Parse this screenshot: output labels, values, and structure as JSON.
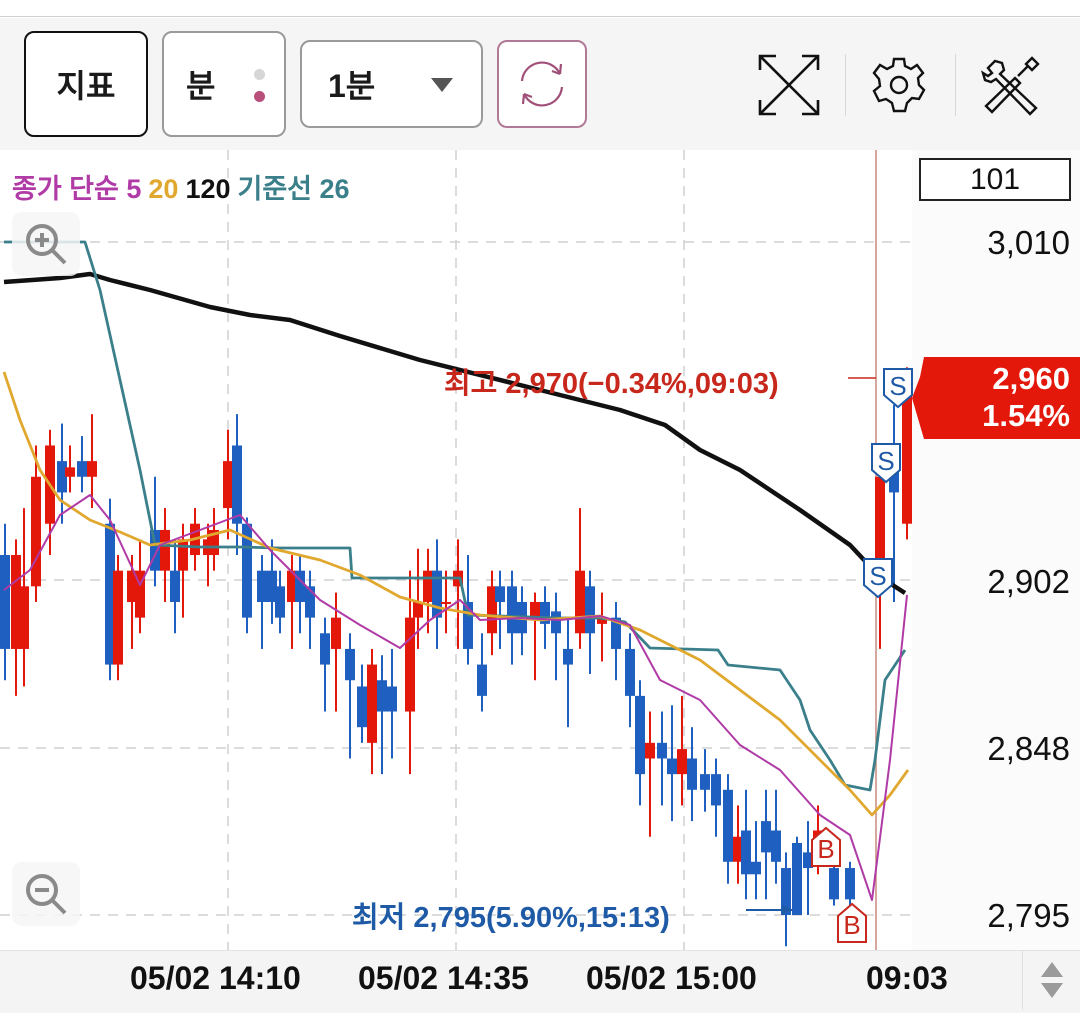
{
  "toolbar": {
    "indicator_label": "지표",
    "unit_label": "분",
    "unit_dots": [
      "#d6d6d6",
      "#b94f7b"
    ],
    "period_label": "1분",
    "refresh_icon": "refresh-icon",
    "icons": [
      "fullscreen-icon",
      "gear-icon",
      "tools-icon"
    ]
  },
  "legend": {
    "items": [
      {
        "text": "종가 단순 5",
        "color": "#b03aa6"
      },
      {
        "text": "20",
        "color": "#e0a82e"
      },
      {
        "text": "120",
        "color": "#111111"
      },
      {
        "text": "기준선 26",
        "color": "#3a7f8a"
      }
    ]
  },
  "count_box": "101",
  "price_tag": {
    "price": "2,960",
    "change": "1.54%",
    "color": "#e3170a"
  },
  "annotations": {
    "high": {
      "text": "최고 2,970(−0.34%,09:03)",
      "color": "#c8281c"
    },
    "low": {
      "text": "최저 2,795(5.90%,15:13)",
      "color": "#1f5aa6"
    }
  },
  "colors": {
    "up": "#e3170a",
    "down": "#1f5fbf",
    "ma5": "#b03aa6",
    "ma20": "#e0a82e",
    "ma120": "#111111",
    "base": "#3a7f8a",
    "grid": "#d0d0d0",
    "now_line": "#c98a7e"
  },
  "chart_data": {
    "type": "candlestick",
    "title": "",
    "interval": "1분",
    "y_ticks": [
      "3,010",
      "2,902",
      "2,848",
      "2,795"
    ],
    "ylim": [
      2780,
      3030
    ],
    "x_ticks": [
      "05/02 14:10",
      "05/02 14:35",
      "05/02 15:00",
      "09:03"
    ],
    "current_price": 2960,
    "current_change_pct": 1.54,
    "high": {
      "price": 2970,
      "pct": -0.34,
      "time": "09:03"
    },
    "low": {
      "price": 2795,
      "pct": 5.9,
      "time": "15:13"
    },
    "candle_count": 101,
    "series": [
      {
        "name": "종가 단순 5",
        "type": "line"
      },
      {
        "name": "20",
        "type": "line"
      },
      {
        "name": "120",
        "type": "line"
      },
      {
        "name": "기준선 26",
        "type": "line"
      }
    ],
    "signals": [
      {
        "type": "S",
        "price_approx": 2966
      },
      {
        "type": "S",
        "price_approx": 2938
      },
      {
        "type": "S",
        "price_approx": 2903
      },
      {
        "type": "B",
        "price_approx": 2811
      },
      {
        "type": "B",
        "price_approx": 2795
      }
    ],
    "legend_position": "top-left",
    "grid": true
  },
  "xaxis": {
    "labels": [
      "05/02 14:10",
      "05/02 14:35",
      "05/02 15:00",
      "09:03"
    ]
  }
}
